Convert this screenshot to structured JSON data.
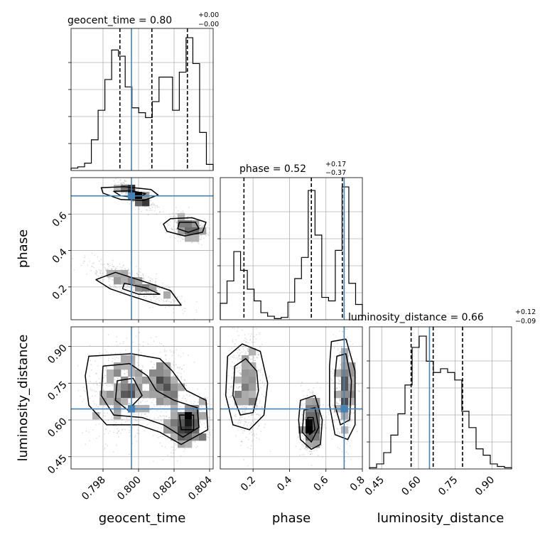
{
  "chart_data": {
    "type": "corner",
    "parameters": [
      {
        "name": "geocent_time",
        "title_prefix": "geocent_time = ",
        "median": "0.80",
        "plus": "+0.00",
        "minus": "−0.00",
        "truth": 0.7996,
        "range": [
          0.7962,
          0.8042
        ],
        "quantiles": [
          0.79895,
          0.80075,
          0.80275
        ],
        "ticks": [
          "0.798",
          "0.800",
          "0.802",
          "0.804"
        ],
        "tick_values": [
          0.798,
          0.8,
          0.802,
          0.804
        ]
      },
      {
        "name": "phase",
        "title_prefix": "phase = ",
        "median": "0.52",
        "plus": "+0.17",
        "minus": "−0.37",
        "truth": 0.7,
        "range": [
          0.02,
          0.8
        ],
        "quantiles": [
          0.15,
          0.52,
          0.69
        ],
        "ticks": [
          "0.2",
          "0.4",
          "0.6",
          "0.8"
        ],
        "tick_values": [
          0.2,
          0.4,
          0.6,
          0.8
        ]
      },
      {
        "name": "luminosity_distance",
        "title_prefix": "luminosity_distance = ",
        "median": "0.66",
        "plus": "+0.12",
        "minus": "−0.09",
        "truth": 0.645,
        "range": [
          0.4,
          0.98
        ],
        "quantiles": [
          0.57,
          0.66,
          0.78
        ],
        "ticks": [
          "0.45",
          "0.60",
          "0.75",
          "0.90"
        ],
        "tick_values": [
          0.45,
          0.6,
          0.75,
          0.9
        ]
      }
    ],
    "hist_geocent_time": [
      0.02,
      0.03,
      0.06,
      0.25,
      0.49,
      0.74,
      0.98,
      0.93,
      0.68,
      0.51,
      0.47,
      0.43,
      0.56,
      0.76,
      0.76,
      0.49,
      0.8,
      1.08,
      0.87,
      0.31,
      0.05
    ],
    "hist_phase": [
      0.14,
      0.33,
      0.58,
      0.42,
      0.26,
      0.16,
      0.06,
      0.03,
      0.01,
      0.02,
      0.15,
      0.35,
      0.53,
      1.1,
      0.72,
      0.19,
      0.16,
      0.59,
      1.13,
      0.31,
      0.13
    ],
    "hist_luminosity_distance": [
      0.01,
      0.04,
      0.13,
      0.27,
      0.44,
      0.67,
      0.97,
      1.06,
      0.86,
      0.77,
      0.8,
      0.77,
      0.71,
      0.46,
      0.33,
      0.16,
      0.11,
      0.04,
      0.02,
      0.01
    ]
  }
}
